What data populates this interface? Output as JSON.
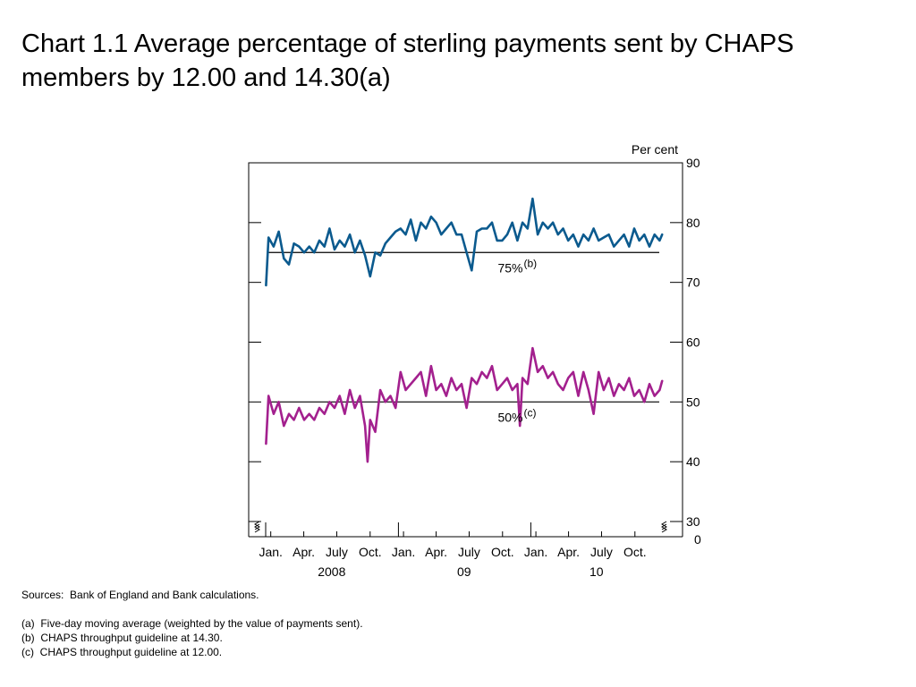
{
  "title": "Chart 1.1  Average percentage of sterling payments sent by CHAPS members by 12.00 and 14.30(a)",
  "chart_data": {
    "type": "line",
    "unit_label": "Per cent",
    "y_ticks": [
      "90",
      "80",
      "70",
      "60",
      "50",
      "40",
      "30"
    ],
    "y_break_label": "0",
    "y_range": [
      30,
      90
    ],
    "y_axis_break": true,
    "x_range": [
      "2008-01-01",
      "2010-12-31"
    ],
    "x_months": [
      "Jan.",
      "Apr.",
      "July",
      "Oct.",
      "Jan.",
      "Apr.",
      "July",
      "Oct.",
      "Jan.",
      "Apr.",
      "July",
      "Oct."
    ],
    "x_years": [
      "2008",
      "09",
      "10"
    ],
    "grid": false,
    "legend": "none",
    "series": [
      {
        "color": "#0b5a8e",
        "x": [
          "2008-01-02",
          "2008-01-09",
          "2008-01-23",
          "2008-02-06",
          "2008-02-20",
          "2008-03-05",
          "2008-03-19",
          "2008-04-02",
          "2008-04-16",
          "2008-04-30",
          "2008-05-14",
          "2008-05-28",
          "2008-06-11",
          "2008-06-25",
          "2008-07-09",
          "2008-07-23",
          "2008-08-06",
          "2008-08-20",
          "2008-09-03",
          "2008-09-17",
          "2008-10-01",
          "2008-10-15",
          "2008-10-29",
          "2008-11-12",
          "2008-11-26",
          "2008-12-10",
          "2008-12-24",
          "2009-01-07",
          "2009-01-21",
          "2009-02-04",
          "2009-02-18",
          "2009-03-04",
          "2009-03-18",
          "2009-04-01",
          "2009-04-15",
          "2009-04-29",
          "2009-05-13",
          "2009-05-27",
          "2009-06-10",
          "2009-06-24",
          "2009-07-08",
          "2009-07-22",
          "2009-08-05",
          "2009-08-19",
          "2009-09-02",
          "2009-09-16",
          "2009-09-30",
          "2009-10-14",
          "2009-10-28",
          "2009-11-11",
          "2009-11-25",
          "2009-12-09",
          "2009-12-23",
          "2010-01-06",
          "2010-01-20",
          "2010-02-03",
          "2010-02-17",
          "2010-03-03",
          "2010-03-17",
          "2010-03-31",
          "2010-04-14",
          "2010-04-28",
          "2010-05-12",
          "2010-05-26",
          "2010-06-09",
          "2010-06-23",
          "2010-07-07",
          "2010-07-21",
          "2010-08-04",
          "2010-08-18",
          "2010-09-01",
          "2010-09-15",
          "2010-09-29",
          "2010-10-13",
          "2010-10-27",
          "2010-11-10",
          "2010-11-24",
          "2010-12-08",
          "2010-12-22",
          "2010-12-29"
        ],
        "y": [
          69.5,
          77.5,
          76,
          78.5,
          74,
          73,
          76.5,
          76,
          75,
          76,
          75,
          77,
          76,
          79,
          75.5,
          77,
          76,
          78,
          75,
          77,
          74.5,
          71,
          75,
          74.5,
          76.5,
          77.5,
          78.5,
          79,
          78,
          80.5,
          77,
          80,
          79,
          81,
          80,
          78,
          79,
          80,
          78,
          78,
          75,
          72,
          78.5,
          79,
          79,
          80,
          77,
          77,
          78,
          80,
          77,
          80,
          79,
          84,
          78,
          80,
          79,
          80,
          78,
          79,
          77,
          78,
          76,
          78,
          77,
          79,
          77,
          77.5,
          78,
          76,
          77,
          78,
          76,
          79,
          77,
          78,
          76,
          78,
          77,
          78
        ]
      },
      {
        "color": "#a3208e",
        "x": [
          "2008-01-02",
          "2008-01-09",
          "2008-01-23",
          "2008-02-06",
          "2008-02-20",
          "2008-03-05",
          "2008-03-19",
          "2008-04-02",
          "2008-04-16",
          "2008-04-30",
          "2008-05-14",
          "2008-05-28",
          "2008-06-11",
          "2008-06-25",
          "2008-07-09",
          "2008-07-23",
          "2008-08-06",
          "2008-08-20",
          "2008-09-03",
          "2008-09-17",
          "2008-10-01",
          "2008-10-08",
          "2008-10-15",
          "2008-10-29",
          "2008-11-12",
          "2008-11-26",
          "2008-12-10",
          "2008-12-24",
          "2009-01-07",
          "2009-01-21",
          "2009-02-04",
          "2009-02-18",
          "2009-03-04",
          "2009-03-18",
          "2009-04-01",
          "2009-04-15",
          "2009-04-29",
          "2009-05-13",
          "2009-05-27",
          "2009-06-10",
          "2009-06-24",
          "2009-07-08",
          "2009-07-22",
          "2009-08-05",
          "2009-08-19",
          "2009-09-02",
          "2009-09-16",
          "2009-09-30",
          "2009-10-14",
          "2009-10-28",
          "2009-11-11",
          "2009-11-25",
          "2009-12-02",
          "2009-12-09",
          "2009-12-23",
          "2010-01-06",
          "2010-01-20",
          "2010-02-03",
          "2010-02-17",
          "2010-03-03",
          "2010-03-17",
          "2010-03-31",
          "2010-04-14",
          "2010-04-28",
          "2010-05-12",
          "2010-05-26",
          "2010-06-09",
          "2010-06-23",
          "2010-07-07",
          "2010-07-21",
          "2010-08-04",
          "2010-08-18",
          "2010-09-01",
          "2010-09-15",
          "2010-09-29",
          "2010-10-13",
          "2010-10-27",
          "2010-11-10",
          "2010-11-24",
          "2010-12-08",
          "2010-12-22",
          "2010-12-29"
        ],
        "y": [
          43,
          51,
          48,
          50,
          46,
          48,
          47,
          49,
          47,
          48,
          47,
          49,
          48,
          50,
          49,
          51,
          48,
          52,
          49,
          51,
          46,
          40,
          47,
          45,
          52,
          50,
          51,
          49,
          55,
          52,
          53,
          54,
          55,
          51,
          56,
          52,
          53,
          51,
          54,
          52,
          53,
          49,
          54,
          53,
          55,
          54,
          56,
          52,
          53,
          54,
          52,
          53,
          46,
          54,
          53,
          59,
          55,
          56,
          54,
          55,
          53,
          52,
          54,
          55,
          51,
          55,
          52,
          48,
          55,
          52,
          54,
          51,
          53,
          52,
          54,
          51,
          52,
          50,
          53,
          51,
          52,
          53.5
        ]
      }
    ],
    "annotations": [
      {
        "value": 75,
        "text": "75%",
        "note": "(b)"
      },
      {
        "value": 50,
        "text": "50%",
        "note": "(c)"
      }
    ]
  },
  "footnotes": {
    "sources": "Sources:  Bank of England and Bank calculations.",
    "a": "(a)  Five-day moving average (weighted by the value of payments sent).",
    "b": "(b)  CHAPS throughput guideline at 14.30.",
    "c": "(c)  CHAPS throughput guideline at 12.00."
  }
}
